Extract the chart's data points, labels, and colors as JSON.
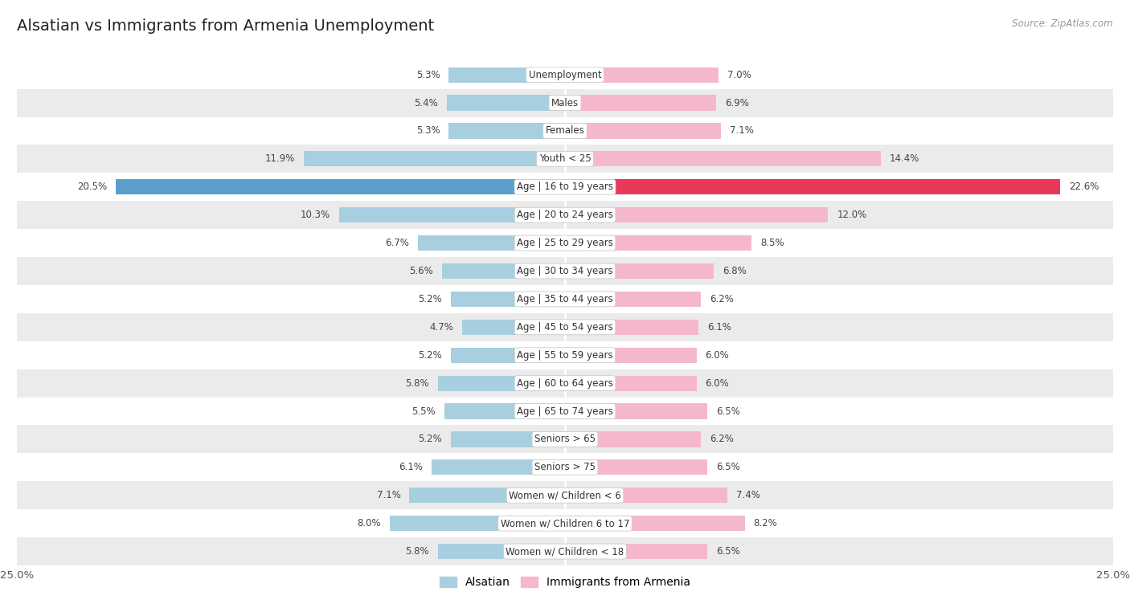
{
  "title": "Alsatian vs Immigrants from Armenia Unemployment",
  "source": "Source: ZipAtlas.com",
  "categories": [
    "Unemployment",
    "Males",
    "Females",
    "Youth < 25",
    "Age | 16 to 19 years",
    "Age | 20 to 24 years",
    "Age | 25 to 29 years",
    "Age | 30 to 34 years",
    "Age | 35 to 44 years",
    "Age | 45 to 54 years",
    "Age | 55 to 59 years",
    "Age | 60 to 64 years",
    "Age | 65 to 74 years",
    "Seniors > 65",
    "Seniors > 75",
    "Women w/ Children < 6",
    "Women w/ Children 6 to 17",
    "Women w/ Children < 18"
  ],
  "alsatian_values": [
    5.3,
    5.4,
    5.3,
    11.9,
    20.5,
    10.3,
    6.7,
    5.6,
    5.2,
    4.7,
    5.2,
    5.8,
    5.5,
    5.2,
    6.1,
    7.1,
    8.0,
    5.8
  ],
  "armenia_values": [
    7.0,
    6.9,
    7.1,
    14.4,
    22.6,
    12.0,
    8.5,
    6.8,
    6.2,
    6.1,
    6.0,
    6.0,
    6.5,
    6.2,
    6.5,
    7.4,
    8.2,
    6.5
  ],
  "alsatian_color": "#a8cfe0",
  "armenia_color": "#f5b8cb",
  "alsatian_highlight_color": "#5b9ec9",
  "armenia_highlight_color": "#e8395a",
  "bg_color": "#ffffff",
  "row_bg_even": "#ffffff",
  "row_bg_odd": "#ebebeb",
  "xlim": 25.0,
  "legend_alsatian": "Alsatian",
  "legend_armenia": "Immigrants from Armenia",
  "highlight_row": 4
}
